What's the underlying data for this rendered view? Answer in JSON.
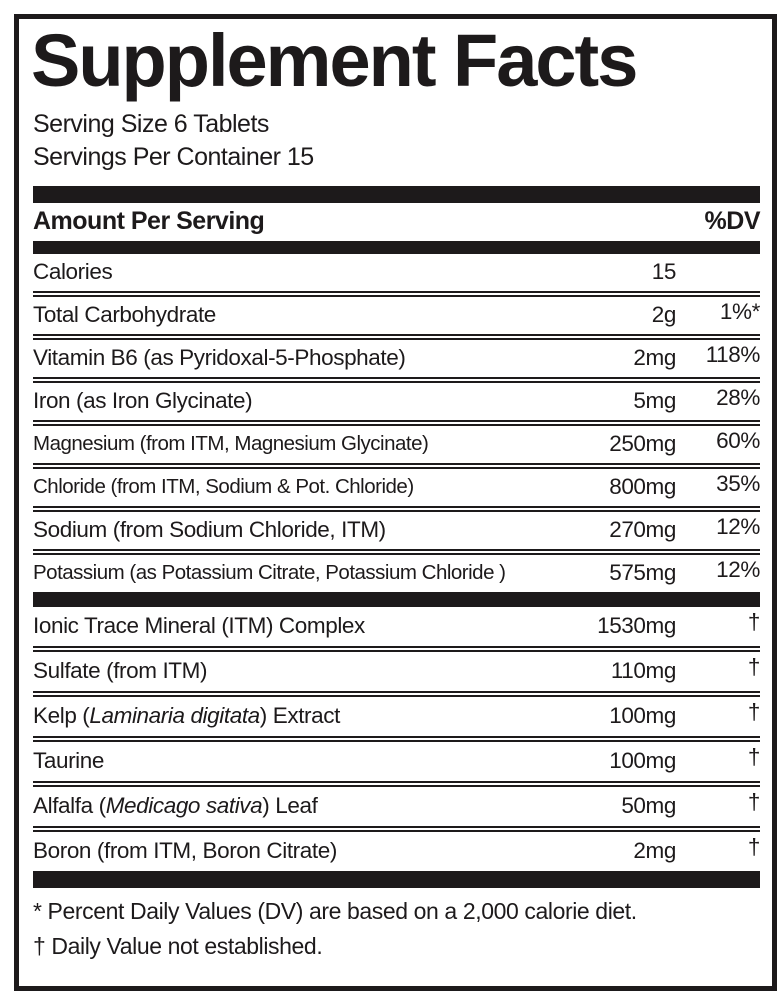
{
  "label": {
    "title": "Supplement Facts",
    "serving_size": "Serving Size 6 Tablets",
    "servings_per_container": "Servings Per Container 15",
    "header": {
      "amount_per_serving": "Amount Per Serving",
      "dv": "%DV"
    },
    "sections": [
      {
        "rows": [
          {
            "name_parts": [
              {
                "text": "Calories",
                "italic": false
              }
            ],
            "amount": "15",
            "dv": ""
          },
          {
            "name_parts": [
              {
                "text": "Total Carbohydrate",
                "italic": false
              }
            ],
            "amount": "2g",
            "dv": "1%*"
          },
          {
            "name_parts": [
              {
                "text": "Vitamin B6 (as Pyridoxal-5-Phosphate)",
                "italic": false
              }
            ],
            "amount": "2mg",
            "dv": "118%"
          },
          {
            "name_parts": [
              {
                "text": "Iron (as Iron Glycinate)",
                "italic": false
              }
            ],
            "amount": "5mg",
            "dv": "28%"
          },
          {
            "name_parts": [
              {
                "text": "Magnesium (from ITM, Magnesium Glycinate)",
                "italic": false
              }
            ],
            "amount": "250mg",
            "dv": "60%"
          },
          {
            "name_parts": [
              {
                "text": "Chloride (from ITM, Sodium & Pot. Chloride)",
                "italic": false
              }
            ],
            "amount": "800mg",
            "dv": "35%"
          },
          {
            "name_parts": [
              {
                "text": "Sodium (from Sodium Chloride, ITM)",
                "italic": false
              }
            ],
            "amount": "270mg",
            "dv": "12%"
          },
          {
            "name_parts": [
              {
                "text": "Potassium (as Potassium Citrate, Potassium Chloride )",
                "italic": false
              }
            ],
            "amount": "575mg",
            "dv": "12%"
          }
        ]
      },
      {
        "rows": [
          {
            "name_parts": [
              {
                "text": "Ionic Trace Mineral (ITM) Complex",
                "italic": false
              }
            ],
            "amount": "1530mg",
            "dv": "†"
          },
          {
            "name_parts": [
              {
                "text": "Sulfate (from ITM)",
                "italic": false
              }
            ],
            "amount": "110mg",
            "dv": "†"
          },
          {
            "name_parts": [
              {
                "text": "Kelp (",
                "italic": false
              },
              {
                "text": "Laminaria digitata",
                "italic": true
              },
              {
                "text": ") Extract",
                "italic": false
              }
            ],
            "amount": "100mg",
            "dv": "†"
          },
          {
            "name_parts": [
              {
                "text": "Taurine",
                "italic": false
              }
            ],
            "amount": "100mg",
            "dv": "†"
          },
          {
            "name_parts": [
              {
                "text": "Alfalfa (",
                "italic": false
              },
              {
                "text": "Medicago sativa",
                "italic": true
              },
              {
                "text": ") Leaf",
                "italic": false
              }
            ],
            "amount": "50mg",
            "dv": "†"
          },
          {
            "name_parts": [
              {
                "text": "Boron (from ITM, Boron Citrate)",
                "italic": false
              }
            ],
            "amount": "2mg",
            "dv": "†"
          }
        ]
      }
    ],
    "footnotes": [
      "* Percent Daily Values (DV) are based on a 2,000 calorie diet.",
      "† Daily Value not established."
    ],
    "colors": {
      "ink": "#1d1a1b",
      "background": "#ffffff"
    }
  }
}
